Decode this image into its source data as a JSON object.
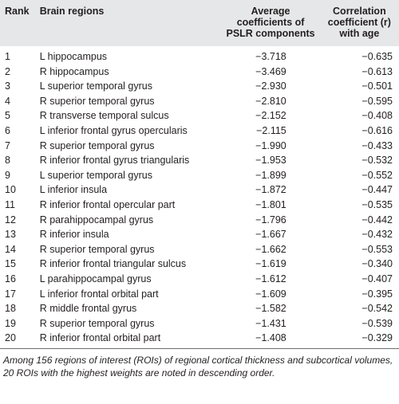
{
  "table": {
    "header": [
      "Rank",
      "Brain regions",
      "Average coefficients of PSLR components",
      "Correlation coefficient (r) with age"
    ],
    "rows": [
      [
        "1",
        "L hippocampus",
        "−3.718",
        "−0.635"
      ],
      [
        "2",
        "R hippocampus",
        "−3.469",
        "−0.613"
      ],
      [
        "3",
        "L superior temporal gyrus",
        "−2.930",
        "−0.501"
      ],
      [
        "4",
        "R superior temporal gyrus",
        "−2.810",
        "−0.595"
      ],
      [
        "5",
        "R transverse temporal sulcus",
        "−2.152",
        "−0.408"
      ],
      [
        "6",
        "L inferior frontal gyrus opercularis",
        "−2.115",
        "−0.616"
      ],
      [
        "7",
        "R superior temporal gyrus",
        "−1.990",
        "−0.433"
      ],
      [
        "8",
        "R inferior frontal gyrus triangularis",
        "−1.953",
        "−0.532"
      ],
      [
        "9",
        "L superior temporal gyrus",
        "−1.899",
        "−0.552"
      ],
      [
        "10",
        "L inferior insula",
        "−1.872",
        "−0.447"
      ],
      [
        "11",
        "R inferior frontal opercular part",
        "−1.801",
        "−0.535"
      ],
      [
        "12",
        "R parahippocampal gyrus",
        "−1.796",
        "−0.442"
      ],
      [
        "13",
        "R inferior insula",
        "−1.667",
        "−0.432"
      ],
      [
        "14",
        "R superior temporal gyrus",
        "−1.662",
        "−0.553"
      ],
      [
        "15",
        "R inferior frontal triangular sulcus",
        "−1.619",
        "−0.340"
      ],
      [
        "16",
        "L parahippocampal gyrus",
        "−1.612",
        "−0.407"
      ],
      [
        "17",
        "L inferior frontal orbital part",
        "−1.609",
        "−0.395"
      ],
      [
        "18",
        "R middle frontal gyrus",
        "−1.582",
        "−0.542"
      ],
      [
        "19",
        "R superior temporal gyrus",
        "−1.431",
        "−0.539"
      ],
      [
        "20",
        "R inferior frontal orbital part",
        "−1.408",
        "−0.329"
      ]
    ]
  },
  "footnote": "Among 156 regions of interest (ROIs) of regional cortical thickness and subcortical volumes, 20 ROIs with the highest weights are noted in descending order."
}
